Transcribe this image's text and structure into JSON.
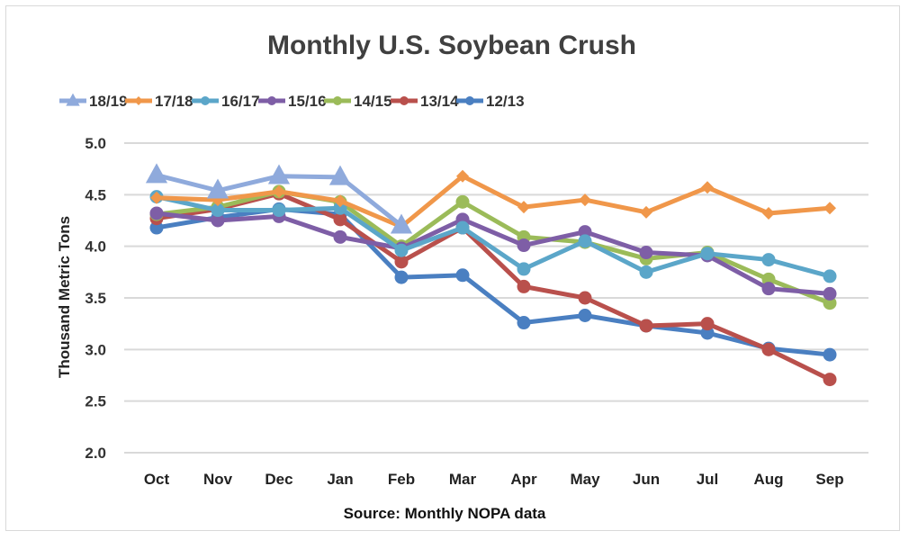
{
  "chart_data": {
    "type": "line",
    "title": "Monthly U.S. Soybean Crush",
    "xlabel": "Source: Monthly NOPA data",
    "ylabel": "Thousand Metric Tons",
    "categories": [
      "Oct",
      "Nov",
      "Dec",
      "Jan",
      "Feb",
      "Mar",
      "Apr",
      "May",
      "Jun",
      "Jul",
      "Aug",
      "Sep"
    ],
    "ylim": [
      2.0,
      5.0
    ],
    "yticks": [
      "2.0",
      "2.5",
      "3.0",
      "3.5",
      "4.0",
      "4.5",
      "5.0"
    ],
    "grid": true,
    "legend_position": "top",
    "series": [
      {
        "name": "18/19",
        "color": "#8faadc",
        "marker": "triangle",
        "values": [
          4.69,
          4.54,
          4.68,
          4.67,
          4.2,
          null,
          null,
          null,
          null,
          null,
          null,
          null
        ]
      },
      {
        "name": "17/18",
        "color": "#f0974a",
        "marker": "diamond",
        "values": [
          4.47,
          4.45,
          4.53,
          4.44,
          4.19,
          4.68,
          4.38,
          4.45,
          4.33,
          4.57,
          4.32,
          4.37
        ]
      },
      {
        "name": "16/17",
        "color": "#5ba6c9",
        "marker": "circle",
        "values": [
          4.48,
          4.35,
          4.35,
          4.37,
          3.96,
          4.18,
          3.78,
          4.05,
          3.75,
          3.93,
          3.87,
          3.71
        ]
      },
      {
        "name": "15/16",
        "color": "#7e5ea6",
        "marker": "circle",
        "values": [
          4.32,
          4.25,
          4.29,
          4.09,
          3.98,
          4.26,
          4.01,
          4.14,
          3.94,
          3.91,
          3.59,
          3.54
        ]
      },
      {
        "name": "14/15",
        "color": "#9bbb59",
        "marker": "circle",
        "values": [
          4.31,
          4.38,
          4.53,
          4.43,
          4.0,
          4.43,
          4.09,
          4.04,
          3.88,
          3.94,
          3.68,
          3.45
        ]
      },
      {
        "name": "13/14",
        "color": "#b9504c",
        "marker": "circle",
        "values": [
          4.27,
          4.36,
          4.51,
          4.26,
          3.85,
          4.18,
          3.61,
          3.5,
          3.23,
          3.25,
          3.0,
          2.71
        ]
      },
      {
        "name": "12/13",
        "color": "#4a7fc1",
        "marker": "circle",
        "values": [
          4.18,
          4.28,
          4.36,
          4.31,
          3.7,
          3.72,
          3.26,
          3.33,
          3.23,
          3.16,
          3.01,
          2.95
        ]
      }
    ]
  }
}
